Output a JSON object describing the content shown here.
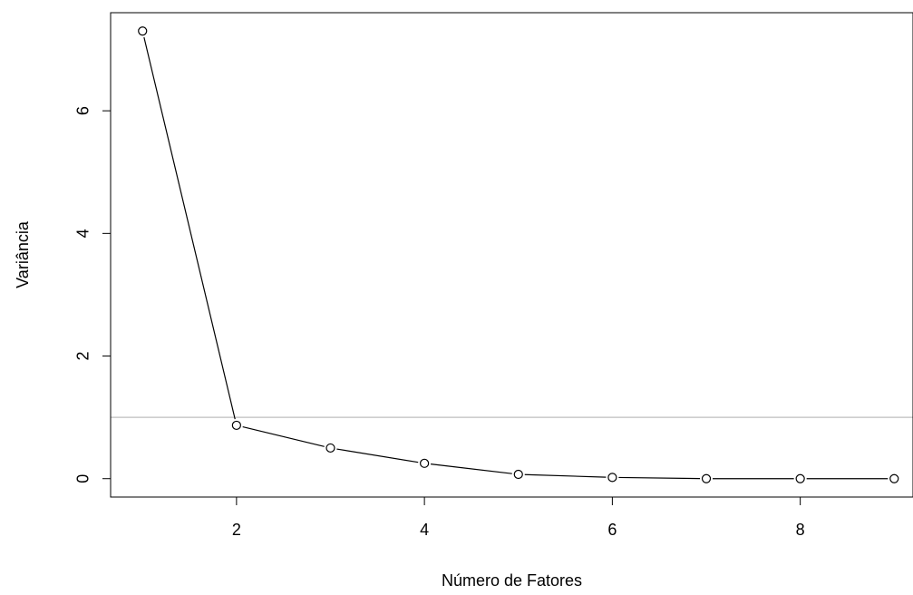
{
  "chart_data": {
    "type": "line",
    "title": "",
    "xlabel": "Número de Fatores",
    "ylabel": "Variância",
    "x": [
      1,
      2,
      3,
      4,
      5,
      6,
      7,
      8,
      9
    ],
    "series": [
      {
        "values": [
          7.3,
          0.87,
          0.5,
          0.25,
          0.07,
          0.02,
          0.0,
          0.0,
          0.0
        ]
      }
    ],
    "xlim": [
      0.66,
      9.2
    ],
    "ylim": [
      -0.3,
      7.6
    ],
    "xticks": [
      2,
      4,
      6,
      8
    ],
    "yticks": [
      0,
      2,
      4,
      6
    ],
    "reference_line": {
      "y": 1,
      "color": "#bebebe"
    },
    "line_color": "#000000",
    "marker": "open-circle",
    "grid": false,
    "legend": "none"
  }
}
